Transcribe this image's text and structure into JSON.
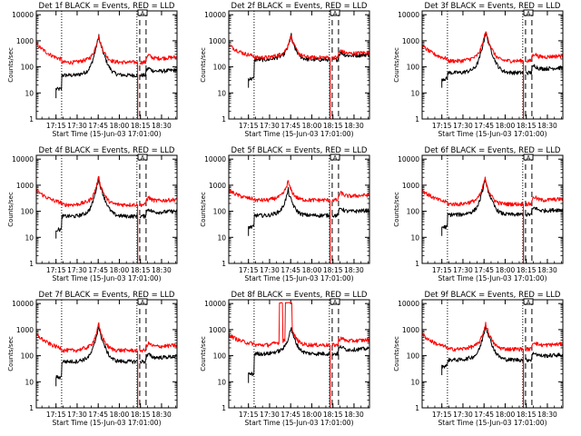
{
  "common": {
    "ylabel": "Counts/sec",
    "xlabel": "Start Time (15-Jun-03 17:01:00)",
    "ytick_labels": [
      "1",
      "10",
      "100",
      "1000",
      "10000"
    ],
    "xtick_labels": [
      "17:15",
      "17:30",
      "17:45",
      "18:00",
      "18:15",
      "18:30"
    ],
    "box_label": "A",
    "colors": {
      "events": "#000000",
      "lld": "#ff0000"
    }
  },
  "chart_data": [
    {
      "type": "line",
      "title": "Det 1f BLACK = Events, RED = LLD",
      "xlim_minutes": [
        0,
        100
      ],
      "ylim": [
        1,
        14000
      ],
      "yscale": "log",
      "xticks_minutes": [
        14,
        29,
        44,
        59,
        74,
        89
      ],
      "vlines_dotted_minutes": [
        18,
        71.5
      ],
      "vlines_dashed_minutes": [
        73.5,
        78
      ],
      "series": [
        {
          "name": "Events",
          "color": "#000000",
          "base": 48,
          "peak": 1150,
          "peak_at": 44.5,
          "start": 14,
          "start_level": 14,
          "gap": [
            72,
            73.5
          ]
        },
        {
          "name": "LLD",
          "color": "#ff0000",
          "base": 150,
          "peak": 1200,
          "peak_at": 44.5,
          "start": 0,
          "start_level": 750,
          "gap": [
            72,
            73.5
          ]
        }
      ]
    },
    {
      "type": "line",
      "title": "Det 2f BLACK = Events, RED = LLD",
      "xlim_minutes": [
        0,
        100
      ],
      "ylim": [
        1,
        14000
      ],
      "yscale": "log",
      "xticks_minutes": [
        14,
        29,
        44,
        59,
        74,
        89
      ],
      "vlines_dotted_minutes": [
        18,
        71.5
      ],
      "vlines_dashed_minutes": [
        73.5,
        78
      ],
      "series": [
        {
          "name": "Events",
          "color": "#000000",
          "base": 190,
          "peak": 1150,
          "peak_at": 44.5,
          "start": 14,
          "start_level": 35,
          "gap": [
            72,
            73.5
          ]
        },
        {
          "name": "LLD",
          "color": "#ff0000",
          "base": 230,
          "peak": 1250,
          "peak_at": 44.5,
          "start": 0,
          "start_level": 700,
          "gap": [
            72,
            73.5
          ]
        }
      ]
    },
    {
      "type": "line",
      "title": "Det 3f BLACK = Events, RED = LLD",
      "xlim_minutes": [
        0,
        100
      ],
      "ylim": [
        1,
        14000
      ],
      "yscale": "log",
      "xticks_minutes": [
        14,
        29,
        44,
        59,
        74,
        89
      ],
      "vlines_dotted_minutes": [
        18,
        71.5
      ],
      "vlines_dashed_minutes": [
        73.5,
        78
      ],
      "series": [
        {
          "name": "Events",
          "color": "#000000",
          "base": 60,
          "peak": 1700,
          "peak_at": 45.5,
          "start": 14,
          "start_level": 35,
          "gap": [
            72,
            73.5
          ]
        },
        {
          "name": "LLD",
          "color": "#ff0000",
          "base": 170,
          "peak": 1900,
          "peak_at": 45.5,
          "start": 0,
          "start_level": 650,
          "gap": [
            72,
            73.5
          ]
        }
      ]
    },
    {
      "type": "line",
      "title": "Det 4f BLACK = Events, RED = LLD",
      "xlim_minutes": [
        0,
        100
      ],
      "ylim": [
        1,
        14000
      ],
      "yscale": "log",
      "xticks_minutes": [
        14,
        29,
        44,
        59,
        74,
        89
      ],
      "vlines_dotted_minutes": [
        18,
        71.5
      ],
      "vlines_dashed_minutes": [
        73.5,
        78
      ],
      "series": [
        {
          "name": "Events",
          "color": "#000000",
          "base": 65,
          "peak": 1400,
          "peak_at": 44.5,
          "start": 14,
          "start_level": 20,
          "gap": [
            72,
            73.5
          ]
        },
        {
          "name": "LLD",
          "color": "#ff0000",
          "base": 180,
          "peak": 1500,
          "peak_at": 44.5,
          "start": 0,
          "start_level": 650,
          "gap": [
            72,
            73.5
          ]
        }
      ]
    },
    {
      "type": "line",
      "title": "Det 5f BLACK = Events, RED = LLD",
      "xlim_minutes": [
        0,
        100
      ],
      "ylim": [
        1,
        14000
      ],
      "yscale": "log",
      "xticks_minutes": [
        14,
        29,
        44,
        59,
        74,
        89
      ],
      "vlines_dotted_minutes": [
        18,
        71.5
      ],
      "vlines_dashed_minutes": [
        73.5,
        78
      ],
      "series": [
        {
          "name": "Events",
          "color": "#000000",
          "base": 70,
          "peak": 500,
          "peak_at": 42.5,
          "start": 14,
          "start_level": 25,
          "gap": [
            72,
            73.5
          ]
        },
        {
          "name": "LLD",
          "color": "#ff0000",
          "base": 270,
          "peak": 1100,
          "peak_at": 42.5,
          "start": 0,
          "start_level": 650,
          "gap": [
            72,
            73.5
          ]
        }
      ]
    },
    {
      "type": "line",
      "title": "Det 6f BLACK = Events, RED = LLD",
      "xlim_minutes": [
        0,
        100
      ],
      "ylim": [
        1,
        14000
      ],
      "yscale": "log",
      "xticks_minutes": [
        14,
        29,
        44,
        59,
        74,
        89
      ],
      "vlines_dotted_minutes": [
        18,
        71.5
      ],
      "vlines_dashed_minutes": [
        73.5,
        78
      ],
      "series": [
        {
          "name": "Events",
          "color": "#000000",
          "base": 75,
          "peak": 1300,
          "peak_at": 45,
          "start": 14,
          "start_level": 25,
          "gap": [
            72,
            73.5
          ]
        },
        {
          "name": "LLD",
          "color": "#ff0000",
          "base": 190,
          "peak": 1400,
          "peak_at": 45,
          "start": 0,
          "start_level": 650,
          "gap": [
            72,
            73.5
          ]
        }
      ]
    },
    {
      "type": "line",
      "title": "Det 7f BLACK = Events, RED = LLD",
      "xlim_minutes": [
        0,
        100
      ],
      "ylim": [
        1,
        14000
      ],
      "yscale": "log",
      "xticks_minutes": [
        14,
        29,
        44,
        59,
        74,
        89
      ],
      "vlines_dotted_minutes": [
        18,
        71.5
      ],
      "vlines_dashed_minutes": [
        73.5,
        78
      ],
      "series": [
        {
          "name": "Events",
          "color": "#000000",
          "base": 60,
          "peak": 1000,
          "peak_at": 44.5,
          "start": 14,
          "start_level": 15,
          "gap": [
            72,
            73.5
          ]
        },
        {
          "name": "LLD",
          "color": "#ff0000",
          "base": 160,
          "peak": 1200,
          "peak_at": 44.5,
          "start": 0,
          "start_level": 650,
          "gap": [
            72,
            73.5
          ]
        }
      ]
    },
    {
      "type": "line",
      "title": "Det 8f BLACK = Events, RED = LLD",
      "xlim_minutes": [
        0,
        100
      ],
      "ylim": [
        1,
        14000
      ],
      "yscale": "log",
      "xticks_minutes": [
        14,
        29,
        44,
        59,
        74,
        89
      ],
      "vlines_dotted_minutes": [
        18,
        71.5
      ],
      "vlines_dashed_minutes": [
        73.5,
        78
      ],
      "series": [
        {
          "name": "Events",
          "color": "#000000",
          "base": 120,
          "peak": 900,
          "peak_at": 44.5,
          "start": 14,
          "start_level": 20,
          "gap": [
            72,
            73.5
          ]
        },
        {
          "name": "LLD",
          "color": "#ff0000",
          "base": 260,
          "peak": 1100,
          "peak_at": 44.5,
          "start": 0,
          "start_level": 650,
          "gap": [
            72,
            73.5
          ],
          "spikes": [
            {
              "from": 36,
              "to": 38.5,
              "level": 11000
            },
            {
              "from": 40,
              "to": 45,
              "level": 11000
            }
          ]
        }
      ]
    },
    {
      "type": "line",
      "title": "Det 9f BLACK = Events, RED = LLD",
      "xlim_minutes": [
        0,
        100
      ],
      "ylim": [
        1,
        14000
      ],
      "yscale": "log",
      "xticks_minutes": [
        14,
        29,
        44,
        59,
        74,
        89
      ],
      "vlines_dotted_minutes": [
        18,
        71.5
      ],
      "vlines_dashed_minutes": [
        73.5,
        78
      ],
      "series": [
        {
          "name": "Events",
          "color": "#000000",
          "base": 70,
          "peak": 1200,
          "peak_at": 45.5,
          "start": 14,
          "start_level": 40,
          "gap": [
            72,
            73.5
          ]
        },
        {
          "name": "LLD",
          "color": "#ff0000",
          "base": 180,
          "peak": 1400,
          "peak_at": 45.5,
          "start": 0,
          "start_level": 650,
          "gap": [
            72,
            73.5
          ]
        }
      ]
    }
  ]
}
